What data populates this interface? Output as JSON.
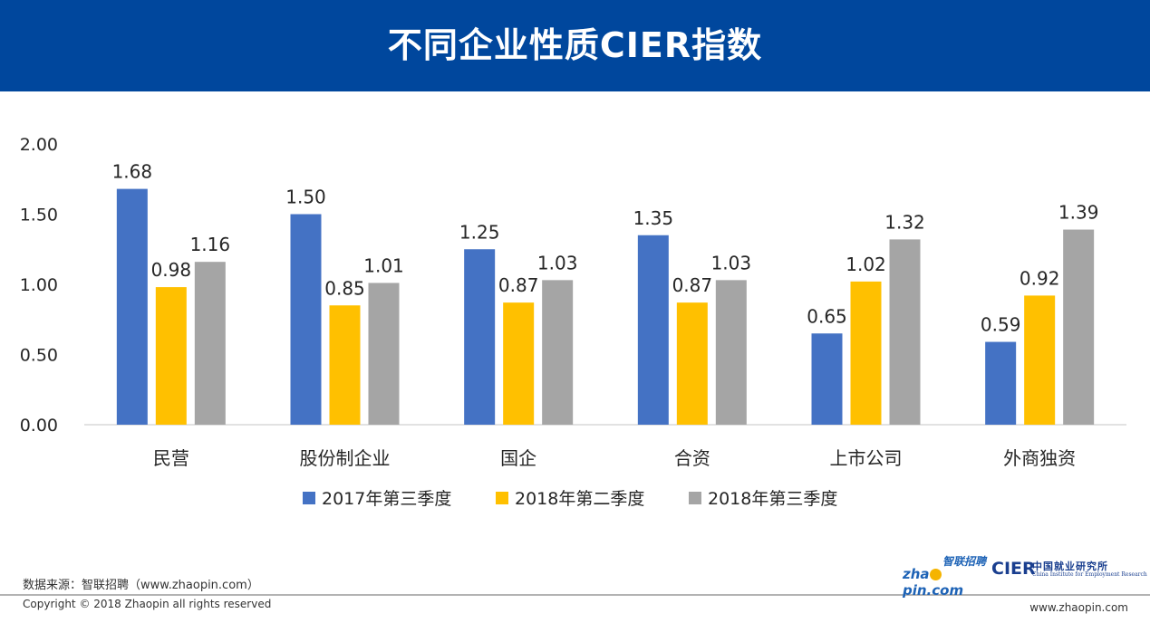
{
  "header": {
    "title": "不同企业性质CIER指数"
  },
  "chart_data": {
    "type": "bar",
    "title": "不同企业性质CIER指数",
    "categories": [
      "民营",
      "股份制企业",
      "国企",
      "合资",
      "上市公司",
      "外商独资"
    ],
    "series": [
      {
        "name": "2017年第三季度",
        "color": "#4472c4",
        "values": [
          1.68,
          1.5,
          1.25,
          1.35,
          0.65,
          0.59
        ]
      },
      {
        "name": "2018年第二季度",
        "color": "#ffc000",
        "values": [
          0.98,
          0.85,
          0.87,
          0.87,
          1.02,
          0.92
        ]
      },
      {
        "name": "2018年第三季度",
        "color": "#a5a5a5",
        "values": [
          1.16,
          1.01,
          1.03,
          1.03,
          1.32,
          1.39
        ]
      }
    ],
    "ylim": [
      0,
      2
    ],
    "yticks": [
      "0.00",
      "0.50",
      "1.00",
      "1.50",
      "2.00"
    ],
    "ytick_values": [
      0,
      0.5,
      1.0,
      1.5,
      2.0
    ],
    "grid": false,
    "legend_position": "bottom"
  },
  "footer": {
    "source": "数据来源：智联招聘（www.zhaopin.com）",
    "copyright": "Copyright © 2018 Zhaopin all rights reserved",
    "website": "www.zhaopin.com"
  },
  "logos": {
    "zhaopin_cn": "智联招聘",
    "zhaopin_en_1": "zha",
    "zhaopin_en_2": "pin.com",
    "cier": "CIER",
    "cier_cn": "中国就业研究所",
    "cier_en": "China Institute for Employment Research"
  }
}
